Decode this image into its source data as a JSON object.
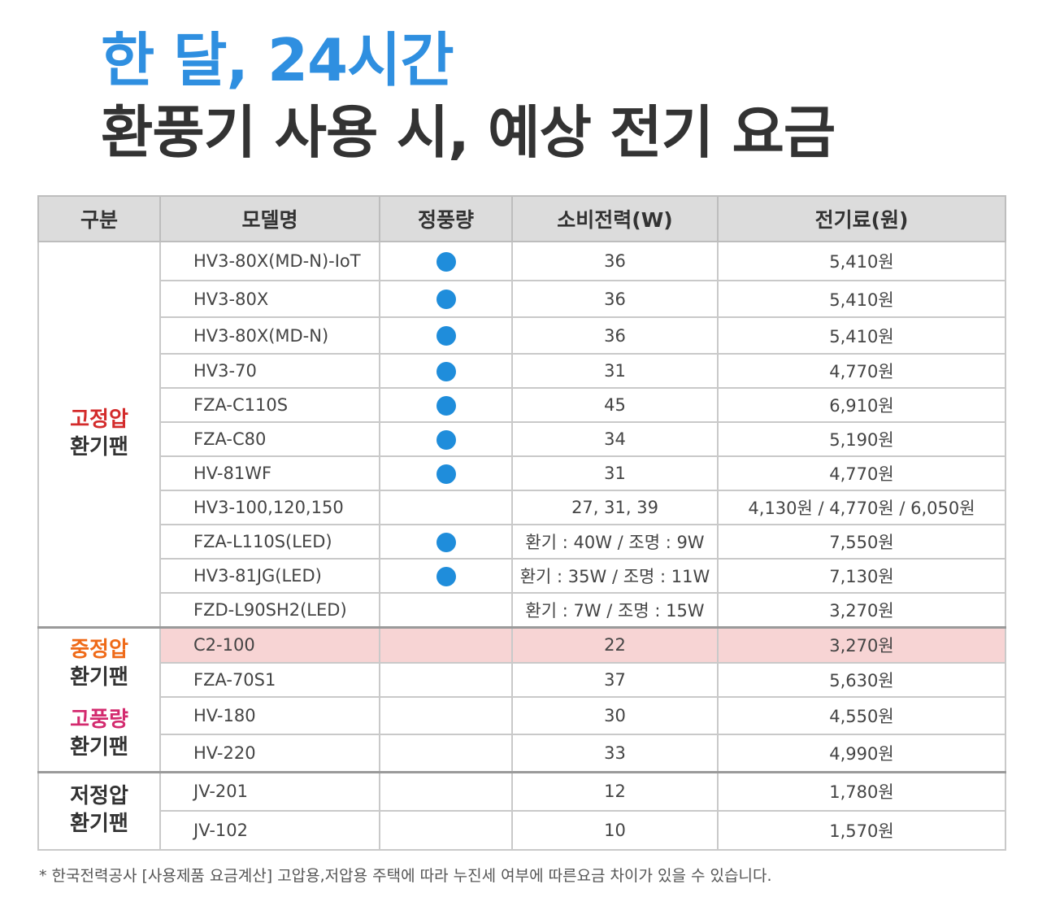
{
  "title_line1": "한 달, 24시간",
  "title_line2": "환풍기 사용 시, 예상 전기 요금",
  "headers": [
    "구분",
    "모델명",
    "정풍량",
    "소비전력(W)",
    "전기료(원)"
  ],
  "groups": {
    "fixed": {
      "line1": "고정압",
      "line2": "환기팬"
    },
    "mid": {
      "line1": "중정압",
      "line2": "환기팬"
    },
    "high": {
      "line1": "고풍량",
      "line2": "환기팬"
    },
    "low": {
      "line1": "저정압",
      "line2": "환기팬"
    }
  },
  "rows": [
    {
      "model": "HV3-80X(MD-N)-IoT",
      "dot": true,
      "power": "36",
      "cost": "5,410원"
    },
    {
      "model": "HV3-80X",
      "dot": true,
      "power": "36",
      "cost": "5,410원"
    },
    {
      "model": "HV3-80X(MD-N)",
      "dot": true,
      "power": "36",
      "cost": "5,410원"
    },
    {
      "model": "HV3-70",
      "dot": true,
      "power": "31",
      "cost": "4,770원"
    },
    {
      "model": "FZA-C110S",
      "dot": true,
      "power": "45",
      "cost": "6,910원"
    },
    {
      "model": "FZA-C80",
      "dot": true,
      "power": "34",
      "cost": "5,190원"
    },
    {
      "model": "HV-81WF",
      "dot": true,
      "power": "31",
      "cost": "4,770원"
    },
    {
      "model": "HV3-100,120,150",
      "dot": false,
      "power": "27, 31, 39",
      "cost": "4,130원 / 4,770원 / 6,050원"
    },
    {
      "model": "FZA-L110S(LED)",
      "dot": true,
      "power": "환기 : 40W / 조명 : 9W",
      "cost": "7,550원"
    },
    {
      "model": "HV3-81JG(LED)",
      "dot": true,
      "power": "환기 : 35W / 조명 : 11W",
      "cost": "7,130원"
    },
    {
      "model": "FZD-L90SH2(LED)",
      "dot": false,
      "power": "환기 : 7W / 조명 : 15W",
      "cost": "3,270원"
    },
    {
      "model": "C2-100",
      "dot": false,
      "power": "22",
      "cost": "3,270원"
    },
    {
      "model": "FZA-70S1",
      "dot": false,
      "power": "37",
      "cost": "5,630원"
    },
    {
      "model": "HV-180",
      "dot": false,
      "power": "30",
      "cost": "4,550원"
    },
    {
      "model": "HV-220",
      "dot": false,
      "power": "33",
      "cost": "4,990원"
    },
    {
      "model": "JV-201",
      "dot": false,
      "power": "12",
      "cost": "1,780원"
    },
    {
      "model": "JV-102",
      "dot": false,
      "power": "10",
      "cost": "1,570원"
    }
  ],
  "footnote": "* 한국전력공사 [사용제품 요금계산] 고압용,저압용 주택에 따라  누진세 여부에 따른요금 차이가 있을 수 있습니다.",
  "colors": {
    "title_blue": "#2f8fe0",
    "dot_blue": "#1f8ddb",
    "highlight": "#f7d4d4"
  },
  "icons": {
    "dot": "blue-circle-icon"
  }
}
